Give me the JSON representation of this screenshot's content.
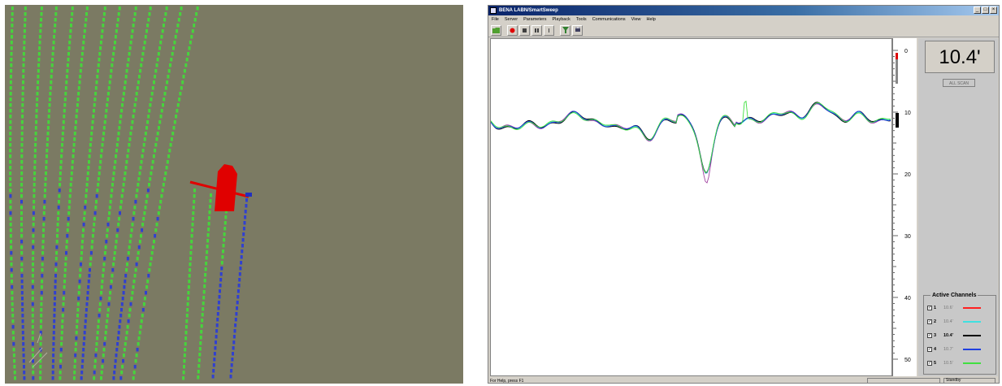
{
  "app": {
    "title": "BENA LABN/SmartSweep",
    "window_buttons": [
      "_",
      "□",
      "×"
    ]
  },
  "menu": [
    "File",
    "Server",
    "Parameters",
    "Playback",
    "Tools",
    "Communications",
    "View",
    "Help"
  ],
  "toolbar_icons": [
    "open-folder-icon",
    "record-icon",
    "stop-icon",
    "pause-icon",
    "step-icon",
    "filter-icon",
    "print-icon"
  ],
  "depth": {
    "current": "10.4'",
    "status": "ALL SCAN",
    "scale_labels": [
      "0",
      "10",
      "20",
      "30",
      "40",
      "50"
    ]
  },
  "channels": {
    "title": "Active Channels",
    "items": [
      {
        "num": "1",
        "value": "10.6'",
        "color": "#ff2020",
        "bold": false
      },
      {
        "num": "2",
        "value": "10.4'",
        "color": "#40e0e0",
        "bold": false
      },
      {
        "num": "3",
        "value": "10.4'",
        "color": "#000000",
        "bold": true
      },
      {
        "num": "4",
        "value": "10.7'",
        "color": "#2040e0",
        "bold": false
      },
      {
        "num": "5",
        "value": "10.5'",
        "color": "#40e040",
        "bold": false
      }
    ]
  },
  "status": {
    "help": "For Help, press F1",
    "pane": "Standby"
  }
}
